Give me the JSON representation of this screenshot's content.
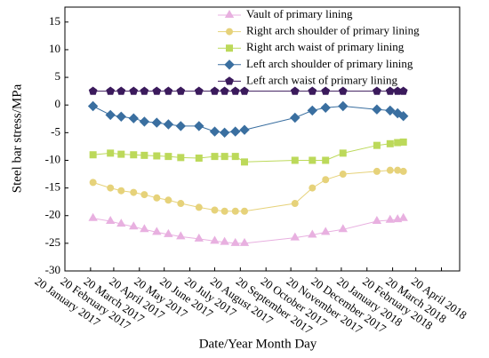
{
  "chart_data": {
    "type": "line",
    "x_label": "Date/Year Month Day",
    "y_label": "Steel bar stress/MPa",
    "x": [
      "2017-02-23",
      "2017-03-16",
      "2017-03-29",
      "2017-04-13",
      "2017-04-26",
      "2017-05-11",
      "2017-05-25",
      "2017-06-09",
      "2017-07-01",
      "2017-07-20",
      "2017-08-01",
      "2017-08-14",
      "2017-08-25",
      "2017-10-25",
      "2017-11-15",
      "2017-12-01",
      "2017-12-22",
      "2018-02-01",
      "2018-02-17",
      "2018-02-26",
      "2018-03-05"
    ],
    "series": [
      {
        "name": "Vault of primary lining",
        "color": "#e8b0e0",
        "marker": "triangle",
        "values": [
          -20.5,
          -21,
          -21.5,
          -22,
          -22.5,
          -23,
          -23.4,
          -23.8,
          -24.2,
          -24.6,
          -24.8,
          -25,
          -25,
          -24,
          -23.5,
          -23,
          -22.5,
          -21,
          -20.8,
          -20.7,
          -20.5
        ]
      },
      {
        "name": "Right arch shoulder of primary lining",
        "color": "#e6d27a",
        "marker": "circle",
        "values": [
          -14,
          -15,
          -15.5,
          -15.8,
          -16.2,
          -16.8,
          -17.2,
          -17.8,
          -18.5,
          -19,
          -19.2,
          -19.2,
          -19.2,
          -17.8,
          -15,
          -13.5,
          -12.5,
          -12,
          -11.8,
          -11.8,
          -12
        ]
      },
      {
        "name": "Right arch waist of primary lining",
        "color": "#bcd95a",
        "marker": "square",
        "values": [
          -9,
          -8.7,
          -8.9,
          -9,
          -9.1,
          -9.2,
          -9.3,
          -9.5,
          -9.6,
          -9.3,
          -9.3,
          -9.3,
          -10.3,
          -10,
          -10,
          -10,
          -8.7,
          -7.3,
          -7,
          -6.8,
          -6.7
        ]
      },
      {
        "name": "Left arch shoulder of primary lining",
        "color": "#3a6fa0",
        "marker": "diamond",
        "values": [
          -0.2,
          -1.8,
          -2.1,
          -2.4,
          -3,
          -3.2,
          -3.5,
          -3.8,
          -3.8,
          -4.8,
          -5,
          -4.8,
          -4.5,
          -2.3,
          -1,
          -0.5,
          -0.2,
          -0.8,
          -1,
          -1.5,
          -2
        ]
      },
      {
        "name": "Left arch waist of primary lining",
        "color": "#3b1a5c",
        "marker": "pentagon",
        "values": [
          2.5,
          2.5,
          2.5,
          2.5,
          2.5,
          2.5,
          2.5,
          2.5,
          2.5,
          2.5,
          2.5,
          2.5,
          2.5,
          2.5,
          2.5,
          2.5,
          2.5,
          2.5,
          2.5,
          2.5,
          2.5
        ]
      }
    ],
    "xlim": [
      "2017-01-20",
      "2018-05-12"
    ],
    "xticks": [
      {
        "value": "2017-01-20",
        "label": "20 January 2017"
      },
      {
        "value": "2017-02-20",
        "label": "20 February 2017"
      },
      {
        "value": "2017-03-20",
        "label": "20 March 2017"
      },
      {
        "value": "2017-04-20",
        "label": "20 April 2017"
      },
      {
        "value": "2017-05-20",
        "label": "20 May 2017"
      },
      {
        "value": "2017-06-20",
        "label": "20 June 2017"
      },
      {
        "value": "2017-07-20",
        "label": "20 July 2017"
      },
      {
        "value": "2017-08-20",
        "label": "20 August 2017"
      },
      {
        "value": "2017-09-20",
        "label": "20 September 2017"
      },
      {
        "value": "2017-10-20",
        "label": "20 October 2017"
      },
      {
        "value": "2017-11-20",
        "label": "20 November 2017"
      },
      {
        "value": "2017-12-20",
        "label": "20 December 2017"
      },
      {
        "value": "2018-01-20",
        "label": "20 January 2018"
      },
      {
        "value": "2018-02-20",
        "label": "20 February 2018"
      },
      {
        "value": "2018-03-20",
        "label": "20 March 2018"
      },
      {
        "value": "2018-04-20",
        "label": "20 April 2018"
      }
    ],
    "ylim": [
      -30,
      17.7
    ],
    "yticks": [
      -30,
      -25,
      -20,
      -15,
      -10,
      -5,
      0,
      5,
      10,
      15
    ],
    "legend": "top-right"
  }
}
